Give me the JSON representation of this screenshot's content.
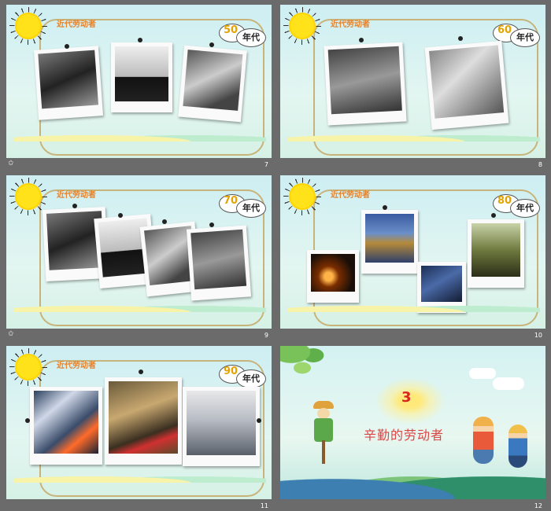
{
  "slides": [
    {
      "number": "7",
      "title": "近代劳动者",
      "decade": "50",
      "era": "年代"
    },
    {
      "number": "8",
      "title": "近代劳动者",
      "decade": "60",
      "era": "年代"
    },
    {
      "number": "9",
      "title": "近代劳动者",
      "decade": "70",
      "era": "年代"
    },
    {
      "number": "10",
      "title": "近代劳动者",
      "decade": "80",
      "era": "年代"
    },
    {
      "number": "11",
      "title": "近代劳动者",
      "decade": "90",
      "era": "年代"
    },
    {
      "number": "12",
      "section_number": "3",
      "heading": "辛勤的劳动者"
    }
  ],
  "footer_icon": "star-icon",
  "colors": {
    "background": "#6b6b6b",
    "title": "#e8822a",
    "decade": "#e3a400",
    "heading": "#d44444",
    "selected": "#f0c000"
  }
}
